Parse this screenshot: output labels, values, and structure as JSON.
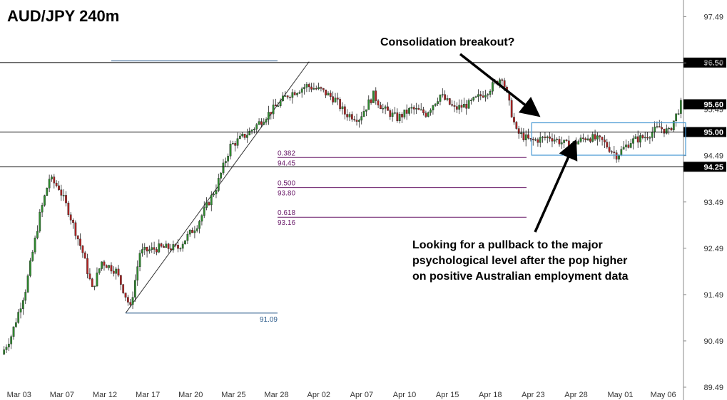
{
  "chart_data": {
    "type": "candlestick",
    "title": "AUD/JPY 240m",
    "ylim": [
      89.49,
      97.79
    ],
    "y_ticks": [
      "97.49",
      "96.49",
      "95.49",
      "94.49",
      "93.49",
      "92.49",
      "91.49",
      "90.49",
      "89.49"
    ],
    "x_ticks": [
      "Mar 03",
      "Mar 07",
      "Mar 12",
      "Mar 17",
      "Mar 20",
      "Mar 25",
      "Mar 28",
      "Apr 02",
      "Apr 07",
      "Apr 10",
      "Apr 15",
      "Apr 18",
      "Apr 23",
      "Apr 28",
      "May 01",
      "May 06"
    ],
    "x_tick_index": [
      0,
      18,
      36,
      54,
      72,
      90,
      108,
      126,
      144,
      162,
      180,
      198,
      216,
      234,
      252,
      270
    ],
    "bar_count": 285,
    "up_color": "#2e8b2e",
    "down_color": "#b22222",
    "price_path": [
      [
        0,
        90.2
      ],
      [
        4,
        90.6
      ],
      [
        10,
        91.6
      ],
      [
        16,
        93.2
      ],
      [
        20,
        94.0
      ],
      [
        24,
        93.8
      ],
      [
        28,
        93.3
      ],
      [
        34,
        92.4
      ],
      [
        38,
        91.6
      ],
      [
        42,
        92.2
      ],
      [
        48,
        92.0
      ],
      [
        54,
        91.2
      ],
      [
        58,
        92.4
      ],
      [
        66,
        92.5
      ],
      [
        74,
        92.5
      ],
      [
        82,
        93.0
      ],
      [
        90,
        93.8
      ],
      [
        96,
        94.7
      ],
      [
        104,
        95.0
      ],
      [
        112,
        95.4
      ],
      [
        120,
        95.8
      ],
      [
        128,
        96.0
      ],
      [
        134,
        95.9
      ],
      [
        140,
        95.7
      ],
      [
        144,
        95.4
      ],
      [
        150,
        95.3
      ],
      [
        156,
        95.8
      ],
      [
        160,
        95.5
      ],
      [
        166,
        95.3
      ],
      [
        172,
        95.5
      ],
      [
        178,
        95.4
      ],
      [
        184,
        95.8
      ],
      [
        190,
        95.5
      ],
      [
        196,
        95.6
      ],
      [
        204,
        95.9
      ],
      [
        210,
        96.2
      ],
      [
        216,
        95.0
      ],
      [
        222,
        94.8
      ],
      [
        230,
        94.9
      ],
      [
        238,
        94.7
      ],
      [
        246,
        94.9
      ],
      [
        252,
        94.8
      ],
      [
        258,
        94.5
      ],
      [
        264,
        94.8
      ],
      [
        270,
        94.9
      ],
      [
        276,
        95.1
      ],
      [
        280,
        95.0
      ],
      [
        285,
        95.6
      ]
    ],
    "horizontal_levels": [
      {
        "value": 96.5,
        "label": "96.50"
      },
      {
        "value": 95.0,
        "label": "95.00"
      },
      {
        "value": 94.25,
        "label": "94.25"
      },
      {
        "value": 95.6,
        "label": "95.60"
      }
    ],
    "fibonacci": {
      "low": {
        "value": 91.09,
        "label": "91.09"
      },
      "high": 96.52,
      "levels": [
        {
          "ratio": "0.382",
          "value": 94.45,
          "label": "94.45"
        },
        {
          "ratio": "0.500",
          "value": 93.8,
          "label": "93.80"
        },
        {
          "ratio": "0.618",
          "value": 93.16,
          "label": "93.16"
        }
      ]
    },
    "consolidation_box": {
      "x_start": 222,
      "x_end": 286,
      "y_low": 94.5,
      "y_high": 95.2
    },
    "annotations": [
      {
        "text": "Consolidation breakout?"
      },
      {
        "text_lines": [
          "Looking for a pullback to the major",
          "psychological level after the pop higher",
          "on positive Australian employment data"
        ]
      }
    ]
  }
}
